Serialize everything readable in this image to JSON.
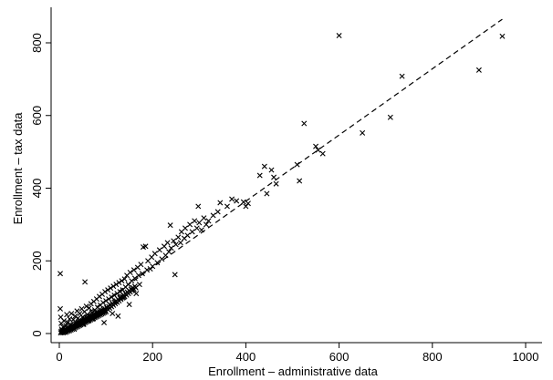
{
  "chart_data": {
    "type": "scatter",
    "title": "",
    "xlabel": "Enrollment – administrative data",
    "ylabel": "Enrollment – tax data",
    "xlim": [
      0,
      1000
    ],
    "ylim": [
      0,
      800
    ],
    "xticks": [
      0,
      200,
      400,
      600,
      800,
      1000
    ],
    "yticks": [
      0,
      200,
      400,
      600,
      800
    ],
    "x_tick_labels": [
      "0",
      "200",
      "400",
      "600",
      "800",
      "1000"
    ],
    "y_tick_labels": [
      "0",
      "200",
      "400",
      "600",
      "800"
    ],
    "marker": "x",
    "grid": false,
    "fit_line": {
      "style": "dashed",
      "x": [
        0,
        950
      ],
      "y": [
        0,
        865
      ]
    },
    "points": [
      [
        2,
        165
      ],
      [
        2,
        68
      ],
      [
        3,
        45
      ],
      [
        4,
        28
      ],
      [
        5,
        12
      ],
      [
        6,
        4
      ],
      [
        8,
        18
      ],
      [
        10,
        35
      ],
      [
        12,
        8
      ],
      [
        14,
        22
      ],
      [
        16,
        52
      ],
      [
        18,
        30
      ],
      [
        20,
        15
      ],
      [
        22,
        40
      ],
      [
        24,
        25
      ],
      [
        26,
        55
      ],
      [
        28,
        20
      ],
      [
        30,
        38
      ],
      [
        32,
        12
      ],
      [
        34,
        48
      ],
      [
        36,
        30
      ],
      [
        38,
        62
      ],
      [
        40,
        42
      ],
      [
        42,
        28
      ],
      [
        44,
        55
      ],
      [
        46,
        35
      ],
      [
        48,
        68
      ],
      [
        50,
        45
      ],
      [
        52,
        25
      ],
      [
        54,
        60
      ],
      [
        56,
        40
      ],
      [
        58,
        75
      ],
      [
        60,
        52
      ],
      [
        55,
        142
      ],
      [
        62,
        35
      ],
      [
        64,
        70
      ],
      [
        66,
        48
      ],
      [
        68,
        82
      ],
      [
        70,
        58
      ],
      [
        72,
        40
      ],
      [
        74,
        88
      ],
      [
        76,
        65
      ],
      [
        78,
        50
      ],
      [
        80,
        95
      ],
      [
        82,
        72
      ],
      [
        84,
        55
      ],
      [
        86,
        102
      ],
      [
        88,
        78
      ],
      [
        90,
        60
      ],
      [
        92,
        108
      ],
      [
        94,
        85
      ],
      [
        96,
        30
      ],
      [
        98,
        115
      ],
      [
        100,
        90
      ],
      [
        102,
        72
      ],
      [
        104,
        120
      ],
      [
        106,
        95
      ],
      [
        108,
        80
      ],
      [
        110,
        125
      ],
      [
        112,
        100
      ],
      [
        114,
        55
      ],
      [
        116,
        130
      ],
      [
        118,
        105
      ],
      [
        120,
        88
      ],
      [
        122,
        135
      ],
      [
        124,
        110
      ],
      [
        126,
        48
      ],
      [
        128,
        140
      ],
      [
        130,
        115
      ],
      [
        132,
        98
      ],
      [
        134,
        145
      ],
      [
        136,
        120
      ],
      [
        138,
        100
      ],
      [
        140,
        150
      ],
      [
        142,
        128
      ],
      [
        145,
        160
      ],
      [
        148,
        135
      ],
      [
        150,
        80
      ],
      [
        152,
        168
      ],
      [
        155,
        145
      ],
      [
        158,
        120
      ],
      [
        160,
        175
      ],
      [
        162,
        152
      ],
      [
        165,
        110
      ],
      [
        168,
        182
      ],
      [
        170,
        160
      ],
      [
        172,
        135
      ],
      [
        175,
        190
      ],
      [
        178,
        165
      ],
      [
        180,
        238
      ],
      [
        185,
        240
      ],
      [
        188,
        175
      ],
      [
        190,
        200
      ],
      [
        195,
        178
      ],
      [
        198,
        210
      ],
      [
        200,
        185
      ],
      [
        205,
        220
      ],
      [
        210,
        195
      ],
      [
        215,
        230
      ],
      [
        220,
        205
      ],
      [
        225,
        240
      ],
      [
        228,
        215
      ],
      [
        232,
        250
      ],
      [
        235,
        225
      ],
      [
        238,
        298
      ],
      [
        240,
        235
      ],
      [
        245,
        255
      ],
      [
        248,
        162
      ],
      [
        250,
        245
      ],
      [
        255,
        265
      ],
      [
        260,
        250
      ],
      [
        262,
        280
      ],
      [
        268,
        262
      ],
      [
        270,
        290
      ],
      [
        275,
        270
      ],
      [
        280,
        300
      ],
      [
        285,
        280
      ],
      [
        290,
        310
      ],
      [
        295,
        290
      ],
      [
        298,
        350
      ],
      [
        300,
        305
      ],
      [
        305,
        285
      ],
      [
        310,
        318
      ],
      [
        315,
        300
      ],
      [
        320,
        310
      ],
      [
        330,
        325
      ],
      [
        340,
        335
      ],
      [
        345,
        360
      ],
      [
        360,
        350
      ],
      [
        370,
        370
      ],
      [
        380,
        365
      ],
      [
        395,
        362
      ],
      [
        400,
        350
      ],
      [
        405,
        358
      ],
      [
        430,
        435
      ],
      [
        440,
        460
      ],
      [
        445,
        385
      ],
      [
        455,
        450
      ],
      [
        460,
        430
      ],
      [
        465,
        412
      ],
      [
        510,
        465
      ],
      [
        515,
        420
      ],
      [
        525,
        578
      ],
      [
        550,
        515
      ],
      [
        555,
        505
      ],
      [
        565,
        495
      ],
      [
        600,
        820
      ],
      [
        650,
        552
      ],
      [
        710,
        595
      ],
      [
        735,
        708
      ],
      [
        900,
        725
      ],
      [
        950,
        818
      ],
      [
        3,
        2
      ],
      [
        4,
        6
      ],
      [
        5,
        3
      ],
      [
        6,
        9
      ],
      [
        7,
        5
      ],
      [
        8,
        2
      ],
      [
        9,
        8
      ],
      [
        10,
        4
      ],
      [
        11,
        10
      ],
      [
        12,
        6
      ],
      [
        13,
        3
      ],
      [
        14,
        12
      ],
      [
        15,
        9
      ],
      [
        16,
        5
      ],
      [
        17,
        14
      ],
      [
        18,
        10
      ],
      [
        19,
        7
      ],
      [
        20,
        16
      ],
      [
        21,
        12
      ],
      [
        22,
        8
      ],
      [
        23,
        18
      ],
      [
        24,
        14
      ],
      [
        25,
        10
      ],
      [
        26,
        20
      ],
      [
        27,
        16
      ],
      [
        28,
        12
      ],
      [
        29,
        22
      ],
      [
        30,
        18
      ],
      [
        31,
        14
      ],
      [
        32,
        24
      ],
      [
        33,
        20
      ],
      [
        34,
        16
      ],
      [
        35,
        26
      ],
      [
        36,
        22
      ],
      [
        37,
        18
      ],
      [
        38,
        28
      ],
      [
        39,
        24
      ],
      [
        40,
        20
      ],
      [
        41,
        30
      ],
      [
        42,
        26
      ],
      [
        43,
        22
      ],
      [
        44,
        32
      ],
      [
        45,
        28
      ],
      [
        46,
        24
      ],
      [
        47,
        34
      ],
      [
        48,
        30
      ],
      [
        49,
        26
      ],
      [
        50,
        36
      ],
      [
        51,
        32
      ],
      [
        52,
        28
      ],
      [
        53,
        38
      ],
      [
        54,
        34
      ],
      [
        55,
        30
      ],
      [
        56,
        40
      ],
      [
        57,
        36
      ],
      [
        58,
        32
      ],
      [
        59,
        42
      ],
      [
        60,
        38
      ],
      [
        61,
        34
      ],
      [
        62,
        44
      ],
      [
        63,
        40
      ],
      [
        64,
        36
      ],
      [
        65,
        46
      ],
      [
        66,
        42
      ],
      [
        67,
        38
      ],
      [
        68,
        48
      ],
      [
        69,
        44
      ],
      [
        70,
        40
      ],
      [
        71,
        50
      ],
      [
        72,
        46
      ],
      [
        73,
        42
      ],
      [
        74,
        52
      ],
      [
        75,
        48
      ],
      [
        76,
        44
      ],
      [
        77,
        54
      ],
      [
        78,
        50
      ],
      [
        79,
        46
      ],
      [
        80,
        56
      ],
      [
        81,
        52
      ],
      [
        82,
        48
      ],
      [
        83,
        58
      ],
      [
        84,
        54
      ],
      [
        85,
        50
      ],
      [
        86,
        60
      ],
      [
        87,
        56
      ],
      [
        88,
        52
      ],
      [
        89,
        62
      ],
      [
        90,
        58
      ],
      [
        91,
        54
      ],
      [
        92,
        64
      ],
      [
        93,
        60
      ],
      [
        94,
        56
      ],
      [
        95,
        66
      ],
      [
        96,
        62
      ],
      [
        97,
        58
      ],
      [
        98,
        68
      ],
      [
        99,
        64
      ],
      [
        100,
        60
      ],
      [
        102,
        70
      ],
      [
        104,
        66
      ],
      [
        106,
        74
      ],
      [
        108,
        70
      ],
      [
        110,
        78
      ],
      [
        112,
        74
      ],
      [
        114,
        82
      ],
      [
        116,
        78
      ],
      [
        118,
        86
      ],
      [
        120,
        82
      ],
      [
        122,
        90
      ],
      [
        124,
        86
      ],
      [
        126,
        94
      ],
      [
        128,
        90
      ],
      [
        130,
        98
      ],
      [
        132,
        94
      ],
      [
        134,
        102
      ],
      [
        136,
        98
      ],
      [
        138,
        106
      ],
      [
        140,
        102
      ],
      [
        142,
        110
      ],
      [
        144,
        106
      ],
      [
        146,
        114
      ],
      [
        148,
        110
      ],
      [
        150,
        118
      ],
      [
        152,
        114
      ],
      [
        154,
        122
      ],
      [
        156,
        118
      ],
      [
        158,
        126
      ],
      [
        160,
        122
      ],
      [
        162,
        130
      ],
      [
        164,
        126
      ]
    ]
  }
}
